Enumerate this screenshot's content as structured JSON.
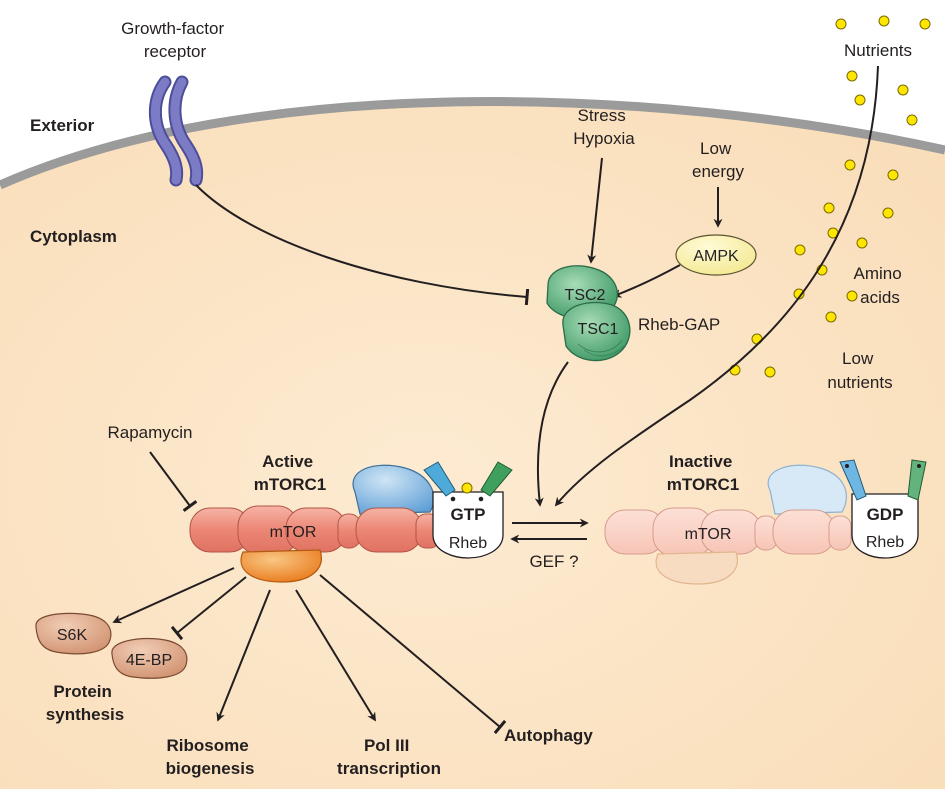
{
  "compartments": {
    "exterior": "Exterior",
    "cytoplasm": "Cytoplasm"
  },
  "receptor": {
    "line1": "Growth-factor",
    "line2": "receptor"
  },
  "stress": {
    "line1": "Stress",
    "line2": "Hypoxia"
  },
  "low_energy": {
    "line1": "Low",
    "line2": "energy"
  },
  "ampk": "AMPK",
  "tsc2": "TSC2",
  "tsc1": "TSC1",
  "rheb_gap": "Rheb-GAP",
  "nutrients": "Nutrients",
  "amino_acids": {
    "line1": "Amino",
    "line2": "acids"
  },
  "low_nutrients": {
    "line1": "Low",
    "line2": "nutrients"
  },
  "rapamycin": "Rapamycin",
  "active": {
    "line1": "Active",
    "line2": "mTORC1",
    "mtor": "mTOR",
    "nucleotide": "GTP",
    "rheb": "Rheb"
  },
  "inactive": {
    "line1": "Inactive",
    "line2": "mTORC1",
    "mtor": "mTOR",
    "nucleotide": "GDP",
    "rheb": "Rheb"
  },
  "gef": "GEF ?",
  "s6k": "S6K",
  "fourebp": "4E-BP",
  "protein_synthesis": {
    "line1": "Protein",
    "line2": "synthesis"
  },
  "ribosome": {
    "line1": "Ribosome",
    "line2": "biogenesis"
  },
  "pol3": {
    "line1": "Pol III",
    "line2": "transcription"
  },
  "autophagy": "Autophagy",
  "colors": {
    "cytoplasm": "#fbe3c4",
    "membrane": "#9a9a9a",
    "receptor": "#6f6fb8",
    "tsc": "#5aa879",
    "ampk": "#f7f0a8",
    "mtor": "#ee8c7c",
    "raptor": "#f29a3e",
    "rheb_cap": "#7fb6e0",
    "nutrient": "#ffe600",
    "downstream": "#d9a183"
  }
}
